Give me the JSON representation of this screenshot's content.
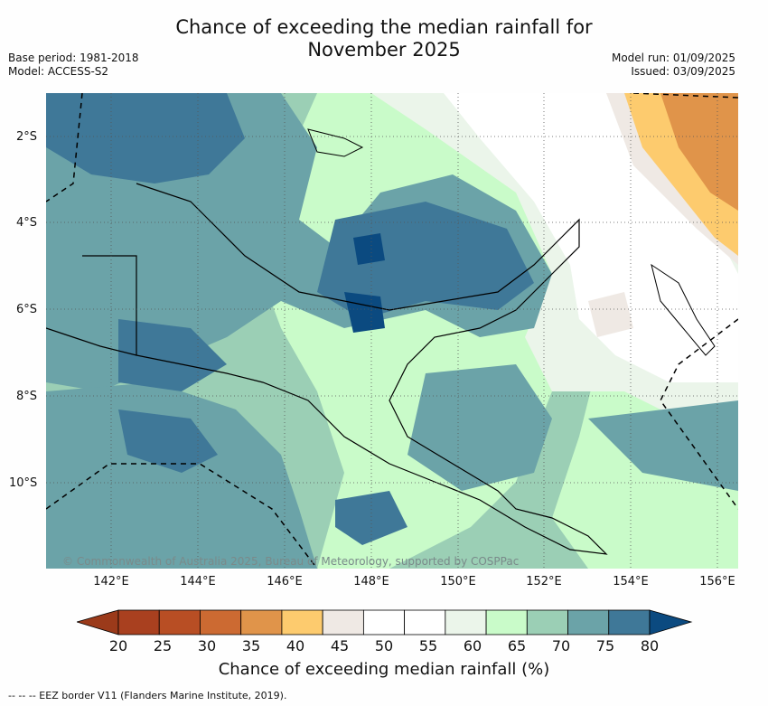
{
  "title_line1": "Chance of exceeding the median rainfall for",
  "title_line2": "November 2025",
  "meta_left": [
    "Base period: 1981-2018",
    "Model: ACCESS-S2"
  ],
  "meta_right": [
    "Model run: 01/09/2025",
    "Issued: 03/09/2025"
  ],
  "lat_labels": [
    "2°S",
    "4°S",
    "6°S",
    "8°S",
    "10°S"
  ],
  "lon_labels": [
    "142°E",
    "144°E",
    "146°E",
    "148°E",
    "150°E",
    "152°E",
    "154°E",
    "156°E"
  ],
  "copyright": "© Commonwealth of Australia 2025, Bureau of Meteorology, supported by COSPPac",
  "colorbar": {
    "ticks": [
      "20",
      "25",
      "30",
      "35",
      "40",
      "45",
      "50",
      "55",
      "60",
      "65",
      "70",
      "75",
      "80"
    ],
    "colors": [
      "#a9401f",
      "#b84e24",
      "#cc6a32",
      "#e0944a",
      "#fdcb6e",
      "#efe9e4",
      "#ffffff",
      "#ffffff",
      "#ebf5ea",
      "#c9fbc9",
      "#9bcfb5",
      "#6ba3a8",
      "#3f7898"
    ],
    "under_color": "#9b3a1a",
    "over_color": "#0b4a80",
    "title": "Chance of exceeding median rainfall (%)"
  },
  "eez_note": "-- --  -- EEZ border V11 (Flanders Marine Institute, 2019)."
}
